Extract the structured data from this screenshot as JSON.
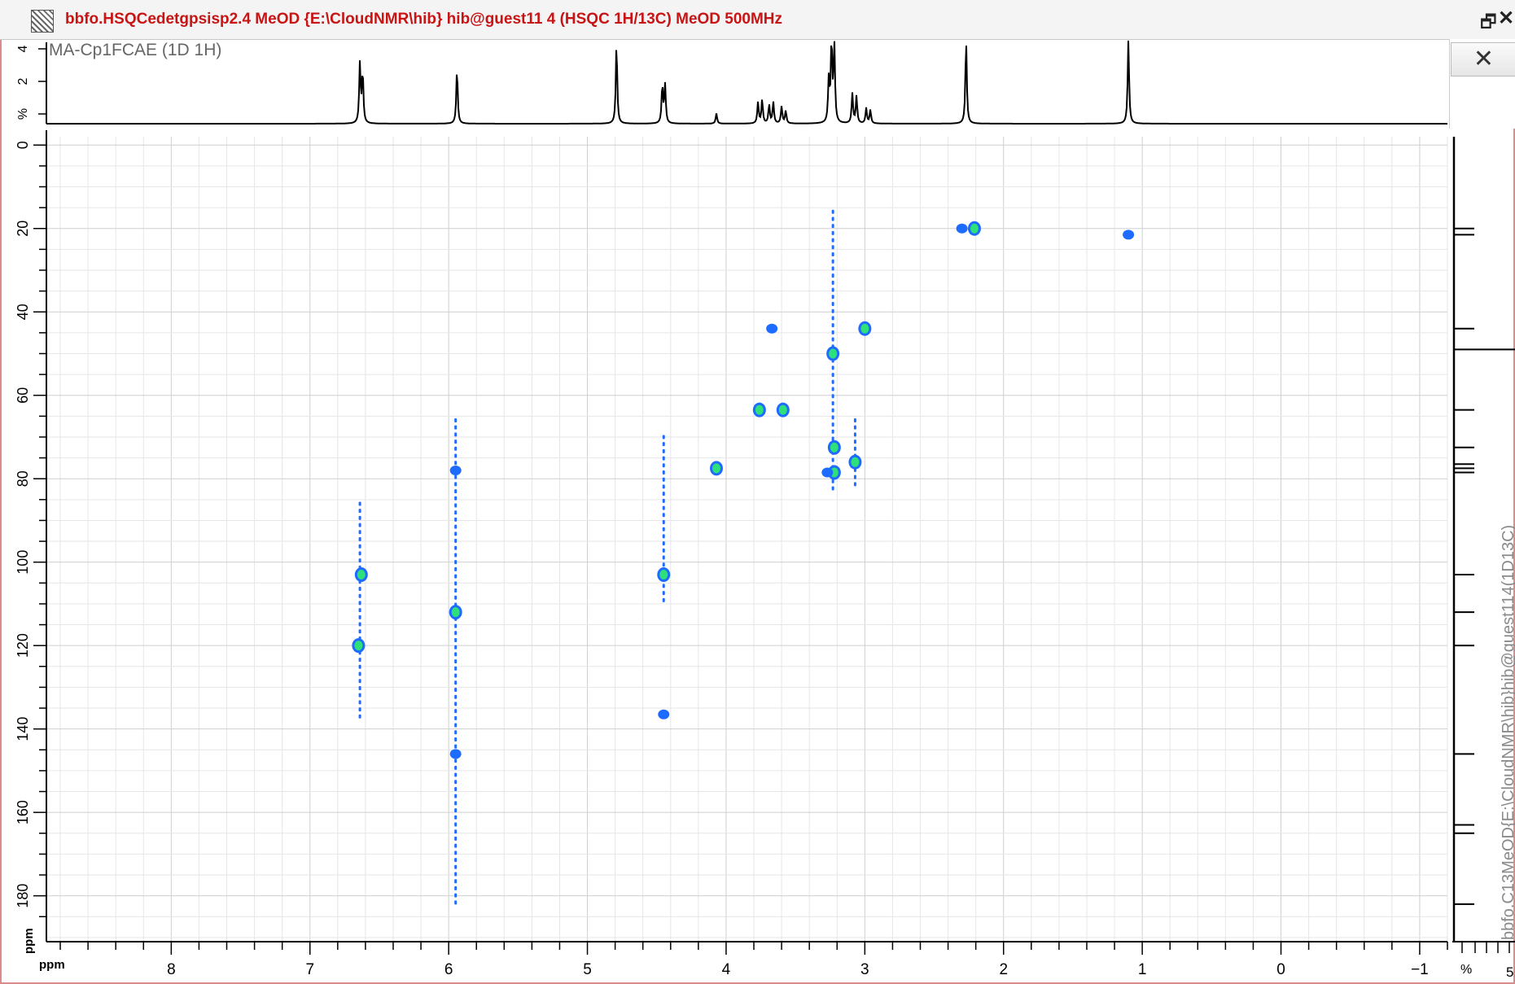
{
  "window": {
    "title": "bbfo.HSQCedetgpsisp2.4 MeOD {E:\\CloudNMR\\hib} hib@guest11 4 (HSQC 1H/13C) MeOD 500MHz",
    "restore_glyph": "🗗",
    "close_glyph": "✕"
  },
  "toolbar": {
    "crosshair_icon": "crosshair-icon",
    "crosshair_glyph": "✕"
  },
  "top_projection": {
    "label": "MA-Cp1FCAE (1D 1H)",
    "y_ticks": [
      "4",
      "2",
      "%"
    ]
  },
  "right_projection": {
    "label": "bbfo.C13MeOD{E:\\CloudNMR\\hib}hib@guest114(1D13C)",
    "x_ticks": [
      "%",
      "5"
    ]
  },
  "chart_data": {
    "type": "scatter",
    "title": "",
    "xlabel": "ppm",
    "ylabel": "ppm",
    "x_reversed": true,
    "y_reversed": true,
    "xlim": [
      8.9,
      -1.2
    ],
    "ylim": [
      -2,
      191
    ],
    "x_ticks": [
      8,
      7,
      6,
      5,
      4,
      3,
      2,
      1,
      0,
      -1
    ],
    "y_ticks": [
      0,
      20,
      40,
      60,
      80,
      100,
      120,
      140,
      160,
      180
    ],
    "grid": true,
    "colors": {
      "contour_outer": "#1e6bff",
      "contour_inner": "#2ee07a",
      "axis": "#000000",
      "grid": "#dcdcdc"
    },
    "peaks": [
      {
        "h": 2.3,
        "c": 20.0,
        "intense": false
      },
      {
        "h": 2.21,
        "c": 20.0,
        "intense": true
      },
      {
        "h": 1.1,
        "c": 21.5,
        "intense": false
      },
      {
        "h": 3.67,
        "c": 44.0,
        "intense": false
      },
      {
        "h": 3.0,
        "c": 44.0,
        "intense": true
      },
      {
        "h": 3.23,
        "c": 50.0,
        "intense": true
      },
      {
        "h": 3.76,
        "c": 63.5,
        "intense": true
      },
      {
        "h": 3.59,
        "c": 63.5,
        "intense": true
      },
      {
        "h": 3.22,
        "c": 72.5,
        "intense": true
      },
      {
        "h": 3.07,
        "c": 76.0,
        "intense": true
      },
      {
        "h": 4.07,
        "c": 77.5,
        "intense": true
      },
      {
        "h": 3.22,
        "c": 78.5,
        "intense": true
      },
      {
        "h": 3.27,
        "c": 78.5,
        "intense": false
      },
      {
        "h": 6.63,
        "c": 103.0,
        "intense": true
      },
      {
        "h": 6.65,
        "c": 120.0,
        "intense": true
      },
      {
        "h": 5.95,
        "c": 112.0,
        "intense": true
      },
      {
        "h": 4.45,
        "c": 103.0,
        "intense": true
      },
      {
        "h": 5.95,
        "c": 146.0,
        "intense": false
      },
      {
        "h": 5.95,
        "c": 78.0,
        "intense": false
      },
      {
        "h": 4.45,
        "c": 136.5,
        "intense": false
      }
    ],
    "streaks": [
      {
        "h": 3.23,
        "c_from": 16,
        "c_to": 84
      },
      {
        "h": 5.95,
        "c_from": 66,
        "c_to": 182
      },
      {
        "h": 6.64,
        "c_from": 86,
        "c_to": 137
      },
      {
        "h": 4.45,
        "c_from": 70,
        "c_to": 110
      },
      {
        "h": 3.07,
        "c_from": 66,
        "c_to": 83
      }
    ],
    "proton_spectrum": {
      "peaks": [
        {
          "ppm": 6.64,
          "height": 0.7
        },
        {
          "ppm": 6.62,
          "height": 0.6
        },
        {
          "ppm": 5.94,
          "height": 0.65
        },
        {
          "ppm": 4.79,
          "height": 0.95
        },
        {
          "ppm": 4.46,
          "height": 0.45
        },
        {
          "ppm": 4.44,
          "height": 0.45
        },
        {
          "ppm": 4.07,
          "height": 0.12
        },
        {
          "ppm": 3.77,
          "height": 0.25
        },
        {
          "ppm": 3.74,
          "height": 0.28
        },
        {
          "ppm": 3.69,
          "height": 0.22
        },
        {
          "ppm": 3.66,
          "height": 0.25
        },
        {
          "ppm": 3.6,
          "height": 0.2
        },
        {
          "ppm": 3.57,
          "height": 0.15
        },
        {
          "ppm": 3.26,
          "height": 0.5
        },
        {
          "ppm": 3.24,
          "height": 0.95
        },
        {
          "ppm": 3.22,
          "height": 0.9
        },
        {
          "ppm": 3.09,
          "height": 0.35
        },
        {
          "ppm": 3.06,
          "height": 0.32
        },
        {
          "ppm": 2.99,
          "height": 0.18
        },
        {
          "ppm": 2.96,
          "height": 0.16
        },
        {
          "ppm": 2.27,
          "height": 0.98
        },
        {
          "ppm": 1.1,
          "height": 0.98
        }
      ]
    },
    "carbon_spectrum": {
      "peaks": [
        20.0,
        21.5,
        44.0,
        49.0,
        63.5,
        72.5,
        76.5,
        77.5,
        78.5,
        103.0,
        112.0,
        120.0,
        146.0,
        163.0,
        165.0,
        182.0
      ],
      "solvent_ppm": 49.0
    }
  }
}
